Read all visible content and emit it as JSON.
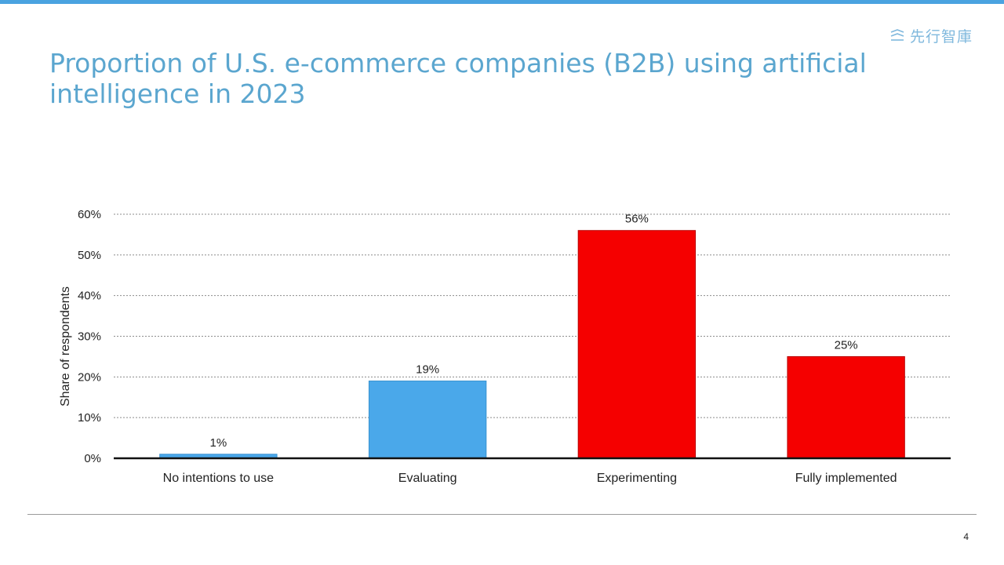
{
  "brand": {
    "name": "先行智庫",
    "icon": "brand-logo-icon"
  },
  "page": {
    "number": "4"
  },
  "colors": {
    "title": "#5ba6cf",
    "bar_blue": "#4aa8ea",
    "bar_red": "#f50000",
    "top_bar": "#4aa3e0"
  },
  "chart_data": {
    "type": "bar",
    "title": "Proportion of U.S. e-commerce companies (B2B) using artificial intelligence in 2023",
    "categories": [
      "No intentions to use",
      "Evaluating",
      "Experimenting",
      "Fully implemented"
    ],
    "values": [
      1,
      19,
      56,
      25
    ],
    "data_labels": [
      "1%",
      "19%",
      "56%",
      "25%"
    ],
    "bar_colors": [
      "#4aa8ea",
      "#4aa8ea",
      "#f50000",
      "#f50000"
    ],
    "xlabel": "",
    "ylabel": "Share of respondents",
    "ylim": [
      0,
      60
    ],
    "yticks": [
      0,
      10,
      20,
      30,
      40,
      50,
      60
    ],
    "ytick_labels": [
      "0%",
      "10%",
      "20%",
      "30%",
      "40%",
      "50%",
      "60%"
    ],
    "grid": "dotted horizontal",
    "legend": "none"
  }
}
